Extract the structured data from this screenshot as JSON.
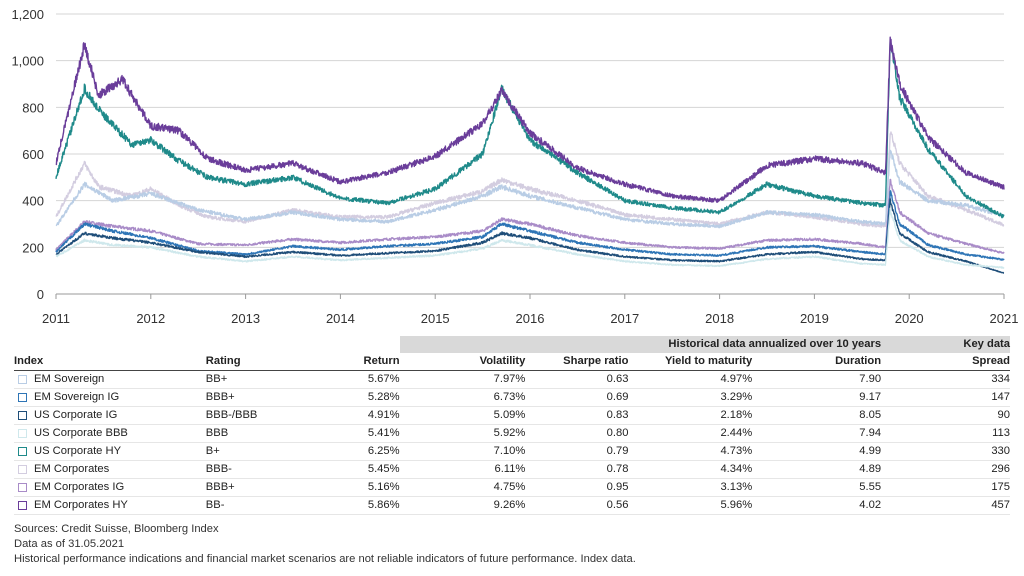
{
  "chart_data": {
    "type": "line",
    "ylim": [
      0,
      1200
    ],
    "yticks": [
      0,
      200,
      400,
      600,
      800,
      1000,
      1200
    ],
    "ytick_labels": [
      "0",
      "200",
      "400",
      "600",
      "800",
      "1,000",
      "1,200"
    ],
    "xlim": [
      2011,
      2021
    ],
    "xticks": [
      2011,
      2012,
      2013,
      2014,
      2015,
      2016,
      2017,
      2018,
      2019,
      2020,
      2021
    ],
    "xtick_labels": [
      "2011",
      "2012",
      "2013",
      "2014",
      "2015",
      "2016",
      "2017",
      "2018",
      "2019",
      "2020",
      "2021"
    ],
    "grid": "horizontal",
    "series": [
      {
        "name": "EM Corporates IG",
        "color": "#a98cc8",
        "points": [
          [
            2011.0,
            190
          ],
          [
            2011.3,
            310
          ],
          [
            2011.6,
            290
          ],
          [
            2012.0,
            270
          ],
          [
            2012.5,
            215
          ],
          [
            2013.0,
            210
          ],
          [
            2013.5,
            235
          ],
          [
            2014.0,
            220
          ],
          [
            2014.5,
            235
          ],
          [
            2015.0,
            245
          ],
          [
            2015.5,
            270
          ],
          [
            2015.7,
            320
          ],
          [
            2016.0,
            300
          ],
          [
            2016.5,
            250
          ],
          [
            2017.0,
            220
          ],
          [
            2017.5,
            200
          ],
          [
            2018.0,
            195
          ],
          [
            2018.5,
            230
          ],
          [
            2019.0,
            235
          ],
          [
            2019.5,
            215
          ],
          [
            2019.75,
            200
          ],
          [
            2019.8,
            490
          ],
          [
            2019.9,
            350
          ],
          [
            2020.2,
            260
          ],
          [
            2020.6,
            215
          ],
          [
            2021.0,
            175
          ]
        ]
      },
      {
        "name": "EM Corporates",
        "color": "#d3cde0",
        "points": [
          [
            2011.0,
            330
          ],
          [
            2011.3,
            560
          ],
          [
            2011.45,
            460
          ],
          [
            2011.8,
            420
          ],
          [
            2012.0,
            450
          ],
          [
            2012.3,
            380
          ],
          [
            2012.6,
            330
          ],
          [
            2013.0,
            310
          ],
          [
            2013.5,
            360
          ],
          [
            2014.0,
            330
          ],
          [
            2014.5,
            330
          ],
          [
            2015.0,
            390
          ],
          [
            2015.5,
            440
          ],
          [
            2015.7,
            490
          ],
          [
            2016.0,
            450
          ],
          [
            2016.5,
            400
          ],
          [
            2017.0,
            340
          ],
          [
            2017.5,
            320
          ],
          [
            2018.0,
            300
          ],
          [
            2018.5,
            350
          ],
          [
            2019.0,
            330
          ],
          [
            2019.5,
            300
          ],
          [
            2019.75,
            290
          ],
          [
            2019.8,
            700
          ],
          [
            2019.9,
            560
          ],
          [
            2020.2,
            420
          ],
          [
            2020.6,
            360
          ],
          [
            2021.0,
            296
          ]
        ]
      },
      {
        "name": "EM Sovereign",
        "color": "#b9cde5",
        "points": [
          [
            2011.0,
            290
          ],
          [
            2011.3,
            470
          ],
          [
            2011.6,
            400
          ],
          [
            2012.0,
            430
          ],
          [
            2012.5,
            360
          ],
          [
            2013.0,
            320
          ],
          [
            2013.5,
            350
          ],
          [
            2014.0,
            320
          ],
          [
            2014.5,
            310
          ],
          [
            2015.0,
            360
          ],
          [
            2015.5,
            420
          ],
          [
            2015.7,
            460
          ],
          [
            2016.0,
            420
          ],
          [
            2016.5,
            370
          ],
          [
            2017.0,
            320
          ],
          [
            2017.5,
            300
          ],
          [
            2018.0,
            290
          ],
          [
            2018.5,
            350
          ],
          [
            2019.0,
            340
          ],
          [
            2019.5,
            310
          ],
          [
            2019.75,
            300
          ],
          [
            2019.8,
            620
          ],
          [
            2019.9,
            480
          ],
          [
            2020.2,
            400
          ],
          [
            2020.6,
            380
          ],
          [
            2021.0,
            334
          ]
        ]
      },
      {
        "name": "EM Sovereign IG",
        "color": "#2e75b6",
        "points": [
          [
            2011.0,
            180
          ],
          [
            2011.3,
            300
          ],
          [
            2011.6,
            270
          ],
          [
            2012.0,
            240
          ],
          [
            2012.5,
            185
          ],
          [
            2013.0,
            170
          ],
          [
            2013.5,
            205
          ],
          [
            2014.0,
            190
          ],
          [
            2014.5,
            205
          ],
          [
            2015.0,
            215
          ],
          [
            2015.5,
            245
          ],
          [
            2015.7,
            300
          ],
          [
            2016.0,
            270
          ],
          [
            2016.5,
            220
          ],
          [
            2017.0,
            190
          ],
          [
            2017.5,
            170
          ],
          [
            2018.0,
            165
          ],
          [
            2018.5,
            200
          ],
          [
            2019.0,
            205
          ],
          [
            2019.5,
            180
          ],
          [
            2019.75,
            170
          ],
          [
            2019.8,
            440
          ],
          [
            2019.9,
            300
          ],
          [
            2020.2,
            210
          ],
          [
            2020.6,
            170
          ],
          [
            2021.0,
            147
          ]
        ]
      },
      {
        "name": "US Corporate IG",
        "color": "#1f4e79",
        "points": [
          [
            2011.0,
            170
          ],
          [
            2011.3,
            260
          ],
          [
            2011.6,
            240
          ],
          [
            2012.0,
            220
          ],
          [
            2012.5,
            180
          ],
          [
            2013.0,
            160
          ],
          [
            2013.5,
            180
          ],
          [
            2014.0,
            165
          ],
          [
            2014.5,
            175
          ],
          [
            2015.0,
            185
          ],
          [
            2015.5,
            220
          ],
          [
            2015.7,
            260
          ],
          [
            2016.0,
            240
          ],
          [
            2016.5,
            190
          ],
          [
            2017.0,
            160
          ],
          [
            2017.5,
            145
          ],
          [
            2018.0,
            140
          ],
          [
            2018.5,
            170
          ],
          [
            2019.0,
            180
          ],
          [
            2019.5,
            150
          ],
          [
            2019.75,
            145
          ],
          [
            2019.8,
            400
          ],
          [
            2019.9,
            260
          ],
          [
            2020.2,
            180
          ],
          [
            2020.6,
            140
          ],
          [
            2021.0,
            90
          ]
        ]
      },
      {
        "name": "US Corporate BBB",
        "color": "#cfe8ec",
        "points": [
          [
            2011.0,
            160
          ],
          [
            2011.3,
            230
          ],
          [
            2011.6,
            210
          ],
          [
            2012.0,
            200
          ],
          [
            2012.5,
            160
          ],
          [
            2013.0,
            140
          ],
          [
            2013.5,
            160
          ],
          [
            2014.0,
            145
          ],
          [
            2014.5,
            155
          ],
          [
            2015.0,
            165
          ],
          [
            2015.5,
            195
          ],
          [
            2015.7,
            230
          ],
          [
            2016.0,
            210
          ],
          [
            2016.5,
            170
          ],
          [
            2017.0,
            140
          ],
          [
            2017.5,
            125
          ],
          [
            2018.0,
            120
          ],
          [
            2018.5,
            150
          ],
          [
            2019.0,
            160
          ],
          [
            2019.5,
            130
          ],
          [
            2019.75,
            125
          ],
          [
            2019.8,
            360
          ],
          [
            2019.9,
            230
          ],
          [
            2020.2,
            160
          ],
          [
            2020.6,
            125
          ],
          [
            2021.0,
            113
          ]
        ]
      },
      {
        "name": "US Corporate HY",
        "color": "#1f8a8a",
        "points": [
          [
            2011.0,
            500
          ],
          [
            2011.3,
            880
          ],
          [
            2011.45,
            790
          ],
          [
            2011.8,
            640
          ],
          [
            2012.0,
            660
          ],
          [
            2012.3,
            570
          ],
          [
            2012.6,
            500
          ],
          [
            2013.0,
            470
          ],
          [
            2013.5,
            500
          ],
          [
            2014.0,
            410
          ],
          [
            2014.5,
            390
          ],
          [
            2015.0,
            450
          ],
          [
            2015.5,
            600
          ],
          [
            2015.7,
            880
          ],
          [
            2016.0,
            660
          ],
          [
            2016.5,
            520
          ],
          [
            2017.0,
            400
          ],
          [
            2017.5,
            370
          ],
          [
            2018.0,
            350
          ],
          [
            2018.5,
            470
          ],
          [
            2019.0,
            420
          ],
          [
            2019.5,
            390
          ],
          [
            2019.75,
            380
          ],
          [
            2019.8,
            1090
          ],
          [
            2019.9,
            840
          ],
          [
            2020.2,
            620
          ],
          [
            2020.6,
            420
          ],
          [
            2021.0,
            330
          ]
        ]
      },
      {
        "name": "EM Corporates HY",
        "color": "#6a3d9a",
        "points": [
          [
            2011.0,
            560
          ],
          [
            2011.3,
            1070
          ],
          [
            2011.45,
            850
          ],
          [
            2011.7,
            920
          ],
          [
            2012.0,
            720
          ],
          [
            2012.3,
            700
          ],
          [
            2012.6,
            580
          ],
          [
            2013.0,
            530
          ],
          [
            2013.5,
            560
          ],
          [
            2014.0,
            480
          ],
          [
            2014.5,
            520
          ],
          [
            2015.0,
            590
          ],
          [
            2015.5,
            730
          ],
          [
            2015.7,
            870
          ],
          [
            2016.0,
            690
          ],
          [
            2016.5,
            540
          ],
          [
            2017.0,
            470
          ],
          [
            2017.5,
            420
          ],
          [
            2018.0,
            400
          ],
          [
            2018.5,
            550
          ],
          [
            2019.0,
            580
          ],
          [
            2019.5,
            560
          ],
          [
            2019.75,
            520
          ],
          [
            2019.8,
            1085
          ],
          [
            2019.9,
            900
          ],
          [
            2020.2,
            670
          ],
          [
            2020.6,
            520
          ],
          [
            2021.0,
            457
          ]
        ]
      }
    ]
  },
  "table": {
    "group_header": "Historical data annualized over 10 years",
    "key_header": "Key data",
    "columns": [
      "Index",
      "Rating",
      "Return",
      "Volatility",
      "Sharpe ratio",
      "Yield to maturity",
      "Duration",
      "Spread"
    ],
    "rows": [
      {
        "index": "EM Sovereign",
        "rating": "BB+",
        "return": "5.67%",
        "volatility": "7.97%",
        "sharpe": "0.63",
        "ytm": "4.97%",
        "duration": "7.90",
        "spread": "334",
        "color": "#b9cde5"
      },
      {
        "index": "EM Sovereign IG",
        "rating": "BBB+",
        "return": "5.28%",
        "volatility": "6.73%",
        "sharpe": "0.69",
        "ytm": "3.29%",
        "duration": "9.17",
        "spread": "147",
        "color": "#2e75b6"
      },
      {
        "index": "US Corporate IG",
        "rating": "BBB-/BBB",
        "return": "4.91%",
        "volatility": "5.09%",
        "sharpe": "0.83",
        "ytm": "2.18%",
        "duration": "8.05",
        "spread": "90",
        "color": "#1f4e79"
      },
      {
        "index": "US Corporate BBB",
        "rating": "BBB",
        "return": "5.41%",
        "volatility": "5.92%",
        "sharpe": "0.80",
        "ytm": "2.44%",
        "duration": "7.94",
        "spread": "113",
        "color": "#cfe8ec"
      },
      {
        "index": "US Corporate HY",
        "rating": "B+",
        "return": "6.25%",
        "volatility": "7.10%",
        "sharpe": "0.79",
        "ytm": "4.73%",
        "duration": "4.99",
        "spread": "330",
        "color": "#1f8a8a"
      },
      {
        "index": "EM Corporates",
        "rating": "BBB-",
        "return": "5.45%",
        "volatility": "6.11%",
        "sharpe": "0.78",
        "ytm": "4.34%",
        "duration": "4.89",
        "spread": "296",
        "color": "#d3cde0"
      },
      {
        "index": "EM Corporates IG",
        "rating": "BBB+",
        "return": "5.16%",
        "volatility": "4.75%",
        "sharpe": "0.95",
        "ytm": "3.13%",
        "duration": "5.55",
        "spread": "175",
        "color": "#a98cc8"
      },
      {
        "index": "EM Corporates HY",
        "rating": "BB-",
        "return": "5.86%",
        "volatility": "9.26%",
        "sharpe": "0.56",
        "ytm": "5.96%",
        "duration": "4.02",
        "spread": "457",
        "color": "#6a3d9a"
      }
    ]
  },
  "footer": {
    "sources": "Sources: Credit Suisse, Bloomberg Index",
    "date": "Data as of 31.05.2021",
    "disclaimer": "Historical performance indications and financial market scenarios are not reliable indicators of future performance. Index data."
  }
}
